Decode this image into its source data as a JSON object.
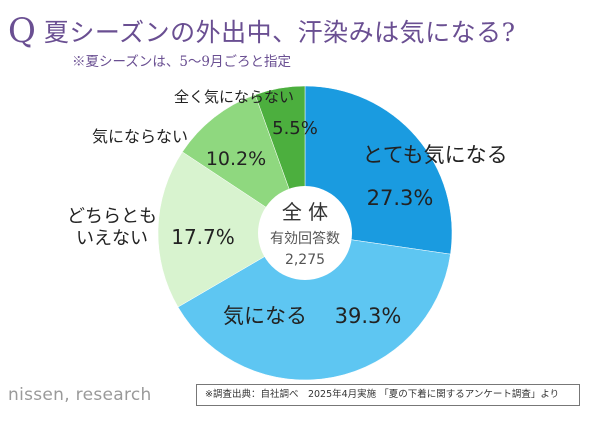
{
  "header": {
    "q_mark": "Q",
    "question": "夏シーズンの外出中、汗染みは気になる?",
    "note": "※夏シーズンは、5〜9月ごろと指定"
  },
  "chart_data": {
    "type": "pie",
    "donut": true,
    "start": "12 o'clock",
    "direction": "clockwise",
    "center": {
      "title": "全 体",
      "label": "有効回答数",
      "n": "2,275"
    },
    "slices": [
      {
        "label": "とても気になる",
        "value": 27.3,
        "display": "27.3%",
        "color": "#1a9be0"
      },
      {
        "label": "気になる",
        "value": 39.3,
        "display": "39.3%",
        "color": "#5ec6f2"
      },
      {
        "label": "どちらとも\nいえない",
        "value": 17.7,
        "display": "17.7%",
        "color": "#d8f3cf"
      },
      {
        "label": "気にならない",
        "value": 10.2,
        "display": "10.2%",
        "color": "#8fd87f"
      },
      {
        "label": "全く気にならない",
        "value": 5.5,
        "display": "5.5%",
        "color": "#4caf3e"
      }
    ]
  },
  "footer": {
    "brand": "nissen, research",
    "source": "※調査出典：自社調べ　2025年4月実施 「夏の下着に関するアンケート調査」より"
  }
}
